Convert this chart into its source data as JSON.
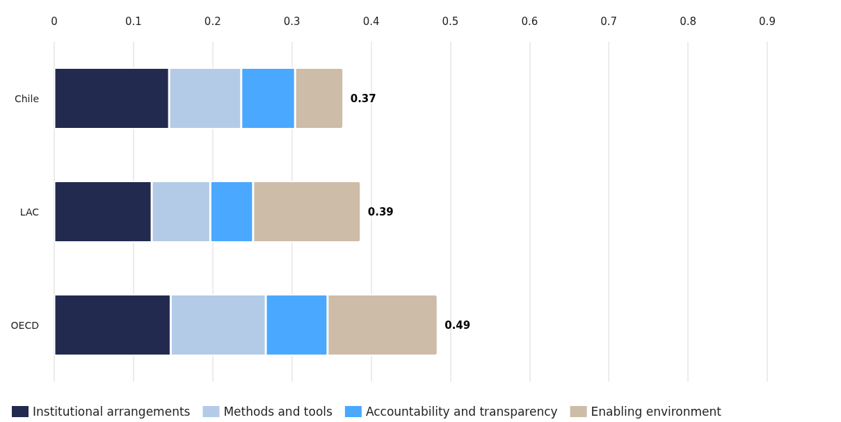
{
  "chart_data": {
    "type": "bar",
    "orientation": "horizontal",
    "stacked": true,
    "categories": [
      "Chile",
      "LAC",
      "OECD"
    ],
    "series": [
      {
        "name": "Institutional arrangements",
        "color": "#222a4f",
        "values": [
          0.145,
          0.123,
          0.147
        ]
      },
      {
        "name": "Methods and tools",
        "color": "#b4cbe8",
        "values": [
          0.091,
          0.074,
          0.12
        ]
      },
      {
        "name": "Accountability and transparency",
        "color": "#4aa8ff",
        "values": [
          0.068,
          0.054,
          0.078
        ]
      },
      {
        "name": "Enabling environment",
        "color": "#cdbca8",
        "values": [
          0.061,
          0.136,
          0.139
        ]
      }
    ],
    "totals": [
      "0.37",
      "0.39",
      "0.49"
    ],
    "xlim": [
      0,
      0.9
    ],
    "xticks": [
      0,
      0.1,
      0.2,
      0.3,
      0.4,
      0.5,
      0.6,
      0.7,
      0.8,
      0.9
    ],
    "grid": "x",
    "legend": "bottom"
  }
}
